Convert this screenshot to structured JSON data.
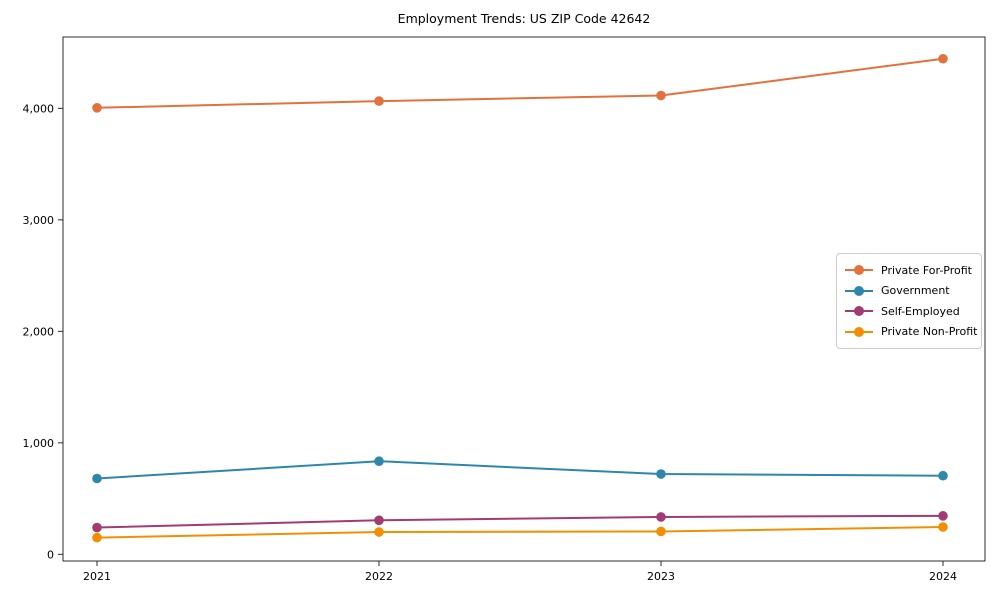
{
  "chart_data": {
    "type": "line",
    "title": "Employment Trends: US ZIP Code 42642",
    "xlabel": "",
    "ylabel": "",
    "x": [
      2021,
      2022,
      2023,
      2024
    ],
    "x_tick_labels": [
      "2021",
      "2022",
      "2023",
      "2024"
    ],
    "y_ticks": [
      0,
      1000,
      2000,
      3000,
      4000
    ],
    "y_tick_labels": [
      "0",
      "1,000",
      "2,000",
      "3,000",
      "4,000"
    ],
    "ylim": [
      -60,
      4640
    ],
    "grid": false,
    "legend_position": "right-middle",
    "marker": "circle",
    "series": [
      {
        "name": "Private For-Profit",
        "color": "#E2713D",
        "values": [
          4005,
          4065,
          4115,
          4445
        ]
      },
      {
        "name": "Government",
        "color": "#2E86AB",
        "values": [
          680,
          835,
          720,
          705
        ]
      },
      {
        "name": "Self-Employed",
        "color": "#A23B72",
        "values": [
          240,
          305,
          335,
          345
        ]
      },
      {
        "name": "Private Non-Profit",
        "color": "#F18F01",
        "values": [
          150,
          200,
          205,
          245
        ]
      }
    ]
  }
}
